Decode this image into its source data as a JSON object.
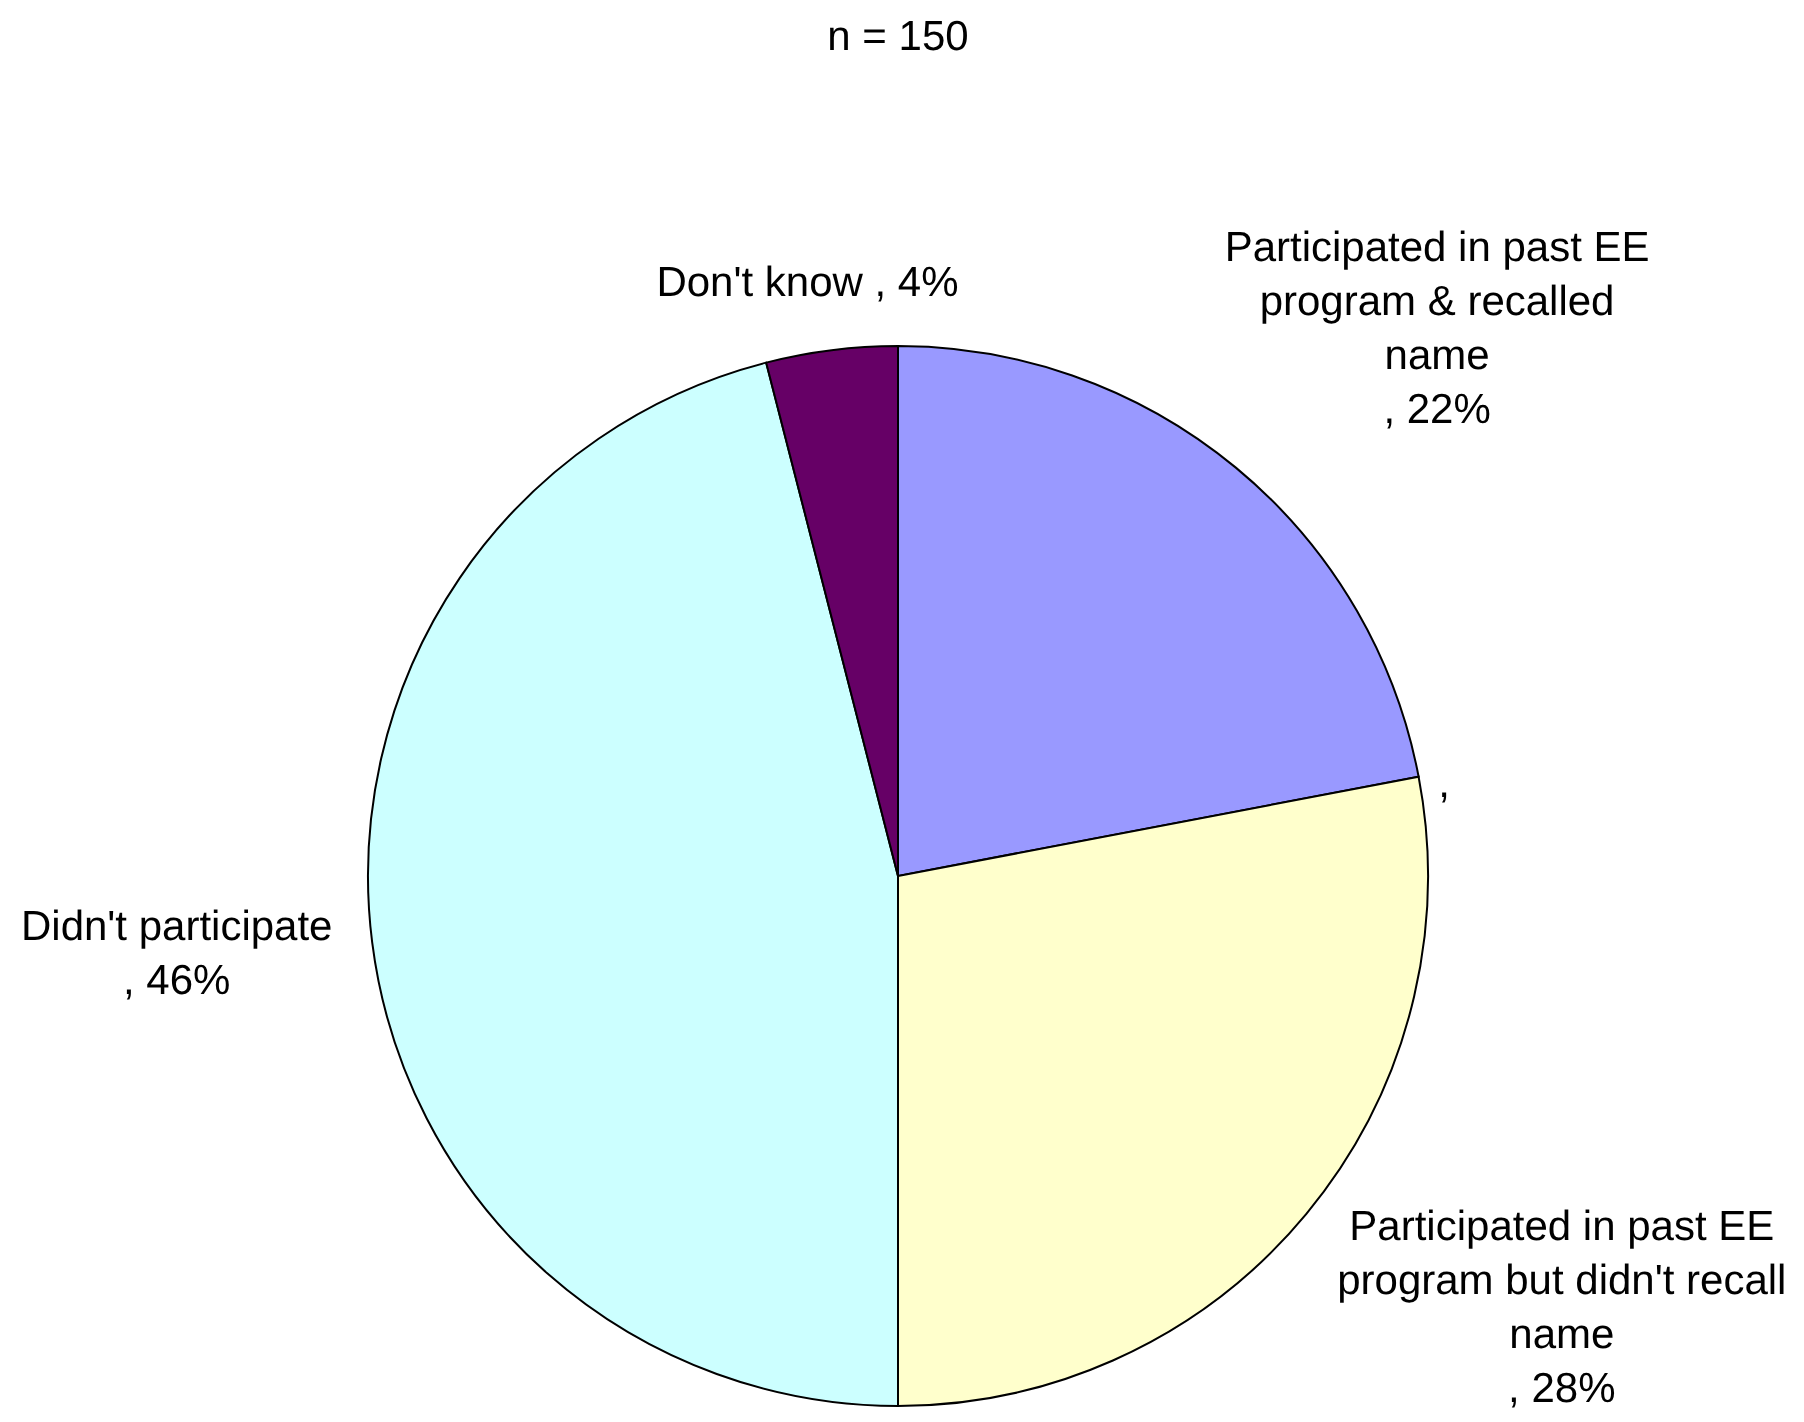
{
  "chart_data": {
    "type": "pie",
    "title": "n = 150",
    "categories": [
      "Participated in past EE program & recalled name",
      "Participated in past EE program but didn't recall name",
      "Didn't participate",
      "Don't know"
    ],
    "values": [
      22,
      28,
      46,
      4
    ],
    "colors": [
      "#9999ff",
      "#ffffcc",
      "#ccffff",
      "#660066"
    ],
    "value_labels": [
      ", 22%",
      ", 28%",
      ", 46%",
      ", 4%"
    ],
    "annotations": [
      ","
    ]
  }
}
